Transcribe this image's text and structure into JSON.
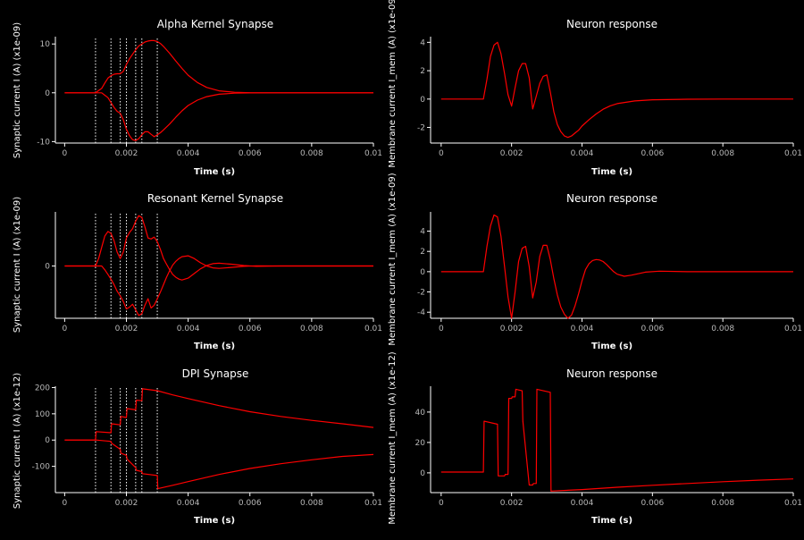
{
  "figure": {
    "background": "#000000",
    "axis_color": "#ffffff",
    "line_color": "#ff0000",
    "marker_color": "#ffffff"
  },
  "chart_data": [
    {
      "type": "line",
      "title": "Alpha Kernel Synapse",
      "xlabel": "Time (s)",
      "ylabel": "Synaptic current I (A) (x1e-09)",
      "xlim": [
        -0.0003,
        0.01
      ],
      "ylim": [
        -10.3,
        11.5
      ],
      "xticks": [
        "0",
        "0.002",
        "0.004",
        "0.006",
        "0.008",
        "0.01"
      ],
      "xtick_values": [
        0,
        0.002,
        0.004,
        0.006,
        0.008,
        0.01
      ],
      "yticks": [
        "-10",
        "0",
        "10"
      ],
      "ytick_values": [
        -10,
        0,
        10
      ],
      "spike_times": [
        0.001,
        0.0015,
        0.0018,
        0.002,
        0.0023,
        0.0025,
        0.003
      ],
      "series": [
        {
          "x": [
            0,
            0.001,
            0.0012,
            0.0013,
            0.0014,
            0.0015,
            0.0016,
            0.0017,
            0.0018,
            0.0019,
            0.002,
            0.0021,
            0.0022,
            0.0023,
            0.0024,
            0.0025,
            0.0026,
            0.0027,
            0.0028,
            0.0029,
            0.003,
            0.0031,
            0.0032,
            0.0034,
            0.0036,
            0.0038,
            0.004,
            0.0043,
            0.0046,
            0.005,
            0.0055,
            0.006,
            0.007,
            0.008,
            0.01
          ],
          "y": [
            0,
            0,
            0.9,
            2.0,
            3.0,
            3.5,
            3.8,
            3.9,
            3.9,
            4.4,
            5.8,
            7.0,
            7.9,
            8.8,
            9.6,
            10.0,
            10.4,
            10.6,
            10.7,
            10.7,
            10.5,
            10.1,
            9.5,
            8.1,
            6.5,
            5.0,
            3.6,
            2.1,
            1.1,
            0.4,
            0.1,
            0.02,
            0,
            0,
            0
          ]
        },
        {
          "x": [
            0,
            0.001,
            0.0012,
            0.0013,
            0.0014,
            0.0015,
            0.0016,
            0.0017,
            0.0018,
            0.0019,
            0.002,
            0.0021,
            0.0022,
            0.0023,
            0.0024,
            0.0025,
            0.0026,
            0.0027,
            0.0028,
            0.0029,
            0.003,
            0.0031,
            0.0032,
            0.0034,
            0.0036,
            0.0038,
            0.004,
            0.0043,
            0.0046,
            0.005,
            0.0055,
            0.006,
            0.007,
            0.008,
            0.01
          ],
          "y": [
            0,
            0,
            0,
            -0.5,
            -1.0,
            -2.0,
            -3.0,
            -3.8,
            -4.2,
            -5.5,
            -7.5,
            -8.8,
            -9.6,
            -9.8,
            -9.4,
            -8.6,
            -8.0,
            -8.0,
            -8.5,
            -9.0,
            -8.6,
            -8.2,
            -7.6,
            -6.4,
            -5.0,
            -3.7,
            -2.6,
            -1.5,
            -0.8,
            -0.3,
            -0.08,
            -0.02,
            0,
            0,
            0
          ]
        }
      ]
    },
    {
      "type": "line",
      "title": "Neuron response",
      "xlabel": "Time (s)",
      "ylabel": "Membrane current I_mem (A) (x1e-09)",
      "xlim": [
        -0.0003,
        0.01
      ],
      "ylim": [
        -3.1,
        4.4
      ],
      "xticks": [
        "0",
        "0.002",
        "0.004",
        "0.006",
        "0.008",
        "0.01"
      ],
      "xtick_values": [
        0,
        0.002,
        0.004,
        0.006,
        0.008,
        0.01
      ],
      "yticks": [
        "-2",
        "0",
        "2",
        "4"
      ],
      "ytick_values": [
        -2,
        0,
        2,
        4
      ],
      "series": [
        {
          "x": [
            0,
            0.0012,
            0.0013,
            0.0014,
            0.0015,
            0.0016,
            0.0017,
            0.0018,
            0.0019,
            0.002,
            0.0021,
            0.0022,
            0.0023,
            0.0024,
            0.0025,
            0.0026,
            0.0027,
            0.0028,
            0.0029,
            0.003,
            0.0031,
            0.0032,
            0.0033,
            0.0034,
            0.0035,
            0.0036,
            0.0037,
            0.0038,
            0.0039,
            0.004,
            0.0042,
            0.0044,
            0.0046,
            0.0048,
            0.005,
            0.0055,
            0.006,
            0.007,
            0.008,
            0.01
          ],
          "y": [
            0,
            0,
            1.4,
            3.0,
            3.8,
            4.0,
            3.2,
            1.8,
            0.3,
            -0.5,
            0.8,
            2.0,
            2.5,
            2.5,
            1.5,
            -0.7,
            0.2,
            1.1,
            1.6,
            1.7,
            0.5,
            -0.9,
            -1.8,
            -2.3,
            -2.6,
            -2.7,
            -2.6,
            -2.4,
            -2.2,
            -1.9,
            -1.45,
            -1.05,
            -0.72,
            -0.48,
            -0.32,
            -0.13,
            -0.05,
            -0.01,
            0,
            0
          ]
        }
      ]
    },
    {
      "type": "line",
      "title": "Resonant Kernel Synapse",
      "xlabel": "Time (s)",
      "ylabel": "Synaptic current I (A) (x1e-09)",
      "xlim": [
        -0.0003,
        0.01
      ],
      "ylim": [
        -5.6,
        5.8
      ],
      "xticks": [
        "0",
        "0.002",
        "0.004",
        "0.006",
        "0.008",
        "0.01"
      ],
      "xtick_values": [
        0,
        0.002,
        0.004,
        0.006,
        0.008,
        0.01
      ],
      "yticks": [
        "0"
      ],
      "ytick_values": [
        0
      ],
      "spike_times": [
        0.001,
        0.0015,
        0.0018,
        0.002,
        0.0023,
        0.0025,
        0.003
      ],
      "series": [
        {
          "x": [
            0,
            0.001,
            0.0011,
            0.0012,
            0.0013,
            0.0014,
            0.0015,
            0.0016,
            0.0017,
            0.0018,
            0.0019,
            0.002,
            0.0021,
            0.0022,
            0.0023,
            0.0024,
            0.0025,
            0.0026,
            0.0027,
            0.0028,
            0.0029,
            0.003,
            0.0031,
            0.0032,
            0.0033,
            0.0034,
            0.0035,
            0.0036,
            0.0037,
            0.0038,
            0.004,
            0.0042,
            0.0044,
            0.0046,
            0.0048,
            0.005,
            0.0054,
            0.0058,
            0.0062,
            0.007,
            0.008,
            0.01
          ],
          "y": [
            0,
            0,
            0.8,
            2.0,
            3.2,
            3.7,
            3.5,
            2.7,
            1.5,
            0.8,
            1.5,
            3.0,
            3.6,
            4.0,
            4.8,
            5.4,
            5.2,
            4.2,
            3.0,
            2.9,
            3.1,
            2.6,
            1.8,
            0.8,
            0.2,
            -0.4,
            -0.9,
            -1.2,
            -1.4,
            -1.5,
            -1.3,
            -0.8,
            -0.3,
            0.05,
            0.25,
            0.3,
            0.2,
            0.05,
            -0.03,
            0,
            0,
            0
          ]
        },
        {
          "x": [
            0,
            0.001,
            0.0011,
            0.0012,
            0.0013,
            0.0014,
            0.0015,
            0.0016,
            0.0017,
            0.0018,
            0.0019,
            0.002,
            0.0021,
            0.0022,
            0.0023,
            0.0024,
            0.0025,
            0.0026,
            0.0027,
            0.0028,
            0.0029,
            0.003,
            0.0031,
            0.0032,
            0.0033,
            0.0034,
            0.0035,
            0.0036,
            0.0037,
            0.0038,
            0.004,
            0.0042,
            0.0044,
            0.0046,
            0.0048,
            0.005,
            0.0054,
            0.0058,
            0.0062,
            0.007,
            0.008,
            0.01
          ],
          "y": [
            0,
            0,
            0,
            0,
            -0.4,
            -0.9,
            -1.4,
            -2.0,
            -2.7,
            -3.2,
            -3.8,
            -4.6,
            -4.4,
            -4.1,
            -4.7,
            -5.3,
            -5.1,
            -4.2,
            -3.5,
            -4.5,
            -4.2,
            -3.5,
            -2.8,
            -2.0,
            -1.2,
            -0.5,
            0.1,
            0.5,
            0.8,
            1.0,
            1.1,
            0.8,
            0.35,
            0.0,
            -0.2,
            -0.25,
            -0.15,
            -0.03,
            0.02,
            0,
            0,
            0
          ]
        }
      ]
    },
    {
      "type": "line",
      "title": "Neuron response",
      "xlabel": "Time (s)",
      "ylabel": "Membrane current I_mem (A) (x1e-09)",
      "xlim": [
        -0.0003,
        0.01
      ],
      "ylim": [
        -4.6,
        5.9
      ],
      "xticks": [
        "0",
        "0.002",
        "0.004",
        "0.006",
        "0.008",
        "0.01"
      ],
      "xtick_values": [
        0,
        0.002,
        0.004,
        0.006,
        0.008,
        0.01
      ],
      "yticks": [
        "-4",
        "-2",
        "0",
        "2",
        "4"
      ],
      "ytick_values": [
        -4,
        -2,
        0,
        2,
        4
      ],
      "series": [
        {
          "x": [
            0,
            0.0012,
            0.0013,
            0.0014,
            0.0015,
            0.0016,
            0.0017,
            0.0018,
            0.0019,
            0.002,
            0.0021,
            0.0022,
            0.0023,
            0.0024,
            0.0025,
            0.0026,
            0.0027,
            0.0028,
            0.0029,
            0.003,
            0.0031,
            0.0032,
            0.0033,
            0.0034,
            0.0035,
            0.0036,
            0.0037,
            0.0038,
            0.0039,
            0.004,
            0.0041,
            0.0042,
            0.0043,
            0.0044,
            0.0045,
            0.0046,
            0.0047,
            0.0048,
            0.0049,
            0.005,
            0.0052,
            0.0054,
            0.0058,
            0.0062,
            0.007,
            0.008,
            0.01
          ],
          "y": [
            0,
            0,
            2.5,
            4.5,
            5.6,
            5.4,
            3.5,
            0.5,
            -2.5,
            -4.6,
            -2.0,
            1.0,
            2.3,
            2.5,
            0.5,
            -2.6,
            -1.0,
            1.5,
            2.6,
            2.6,
            1.2,
            -0.7,
            -2.3,
            -3.5,
            -4.2,
            -4.6,
            -4.3,
            -3.4,
            -2.2,
            -0.9,
            0.2,
            0.8,
            1.1,
            1.2,
            1.15,
            1.0,
            0.7,
            0.35,
            0.0,
            -0.25,
            -0.45,
            -0.35,
            -0.05,
            0.05,
            0,
            0,
            0
          ]
        }
      ]
    },
    {
      "type": "line",
      "title": "DPI Synapse",
      "xlabel": "Time (s)",
      "ylabel": "Synaptic current I (A) (x1e-12)",
      "xlim": [
        -0.0003,
        0.01
      ],
      "ylim": [
        -200,
        205
      ],
      "xticks": [
        "0",
        "0.002",
        "0.004",
        "0.006",
        "0.008",
        "0.01"
      ],
      "xtick_values": [
        0,
        0.002,
        0.004,
        0.006,
        0.008,
        0.01
      ],
      "yticks": [
        "-100",
        "0",
        "100",
        "200"
      ],
      "ytick_values": [
        -100,
        0,
        100,
        200
      ],
      "spike_times": [
        0.001,
        0.0015,
        0.0018,
        0.002,
        0.0023,
        0.0025,
        0.003
      ],
      "series": [
        {
          "x": [
            0,
            0.001,
            0.00102,
            0.0015,
            0.00152,
            0.0018,
            0.00182,
            0.002,
            0.00202,
            0.0023,
            0.00232,
            0.0025,
            0.00252,
            0.003,
            0.0035,
            0.004,
            0.005,
            0.006,
            0.007,
            0.008,
            0.009,
            0.01
          ],
          "y": [
            0,
            0,
            32,
            28,
            62,
            58,
            90,
            86,
            120,
            115,
            152,
            150,
            195,
            188,
            172,
            158,
            131,
            108,
            90,
            75,
            62,
            48
          ]
        },
        {
          "x": [
            0,
            0.001,
            0.00102,
            0.0015,
            0.00152,
            0.0018,
            0.00182,
            0.002,
            0.00202,
            0.0023,
            0.00232,
            0.0025,
            0.00252,
            0.003,
            0.00302,
            0.0035,
            0.004,
            0.005,
            0.006,
            0.007,
            0.008,
            0.009,
            0.01
          ],
          "y": [
            0,
            0,
            0,
            -5,
            -12,
            -35,
            -50,
            -58,
            -72,
            -105,
            -115,
            -120,
            -128,
            -135,
            -185,
            -172,
            -158,
            -131,
            -108,
            -90,
            -75,
            -62,
            -55
          ]
        }
      ]
    },
    {
      "type": "line",
      "title": "Neuron response",
      "xlabel": "Time (s)",
      "ylabel": "Membrane current I_mem (A) (x1e-12)",
      "xlim": [
        -0.0003,
        0.01
      ],
      "ylim": [
        -13,
        57
      ],
      "xticks": [
        "0",
        "0.002",
        "0.004",
        "0.006",
        "0.008",
        "0.01"
      ],
      "xtick_values": [
        0,
        0.002,
        0.004,
        0.006,
        0.008,
        0.01
      ],
      "yticks": [
        "0",
        "20",
        "40"
      ],
      "ytick_values": [
        0,
        20,
        40
      ],
      "series": [
        {
          "x": [
            0,
            0.0012,
            0.00122,
            0.0016,
            0.00162,
            0.0018,
            0.00182,
            0.0019,
            0.00192,
            0.002,
            0.00202,
            0.0021,
            0.00212,
            0.0023,
            0.00232,
            0.0025,
            0.00252,
            0.0026,
            0.00262,
            0.0027,
            0.00272,
            0.0031,
            0.00312,
            0.004,
            0.005,
            0.006,
            0.007,
            0.008,
            0.009,
            0.01
          ],
          "y": [
            0.5,
            0.5,
            34,
            32,
            -2,
            -2,
            -1,
            -1,
            49,
            49,
            50,
            50,
            55,
            54,
            34,
            -8,
            -8,
            -8,
            -7,
            -7,
            55,
            53,
            -12,
            -11,
            -9.5,
            -8.2,
            -7.0,
            -5.8,
            -4.8,
            -4.0
          ]
        }
      ]
    }
  ]
}
